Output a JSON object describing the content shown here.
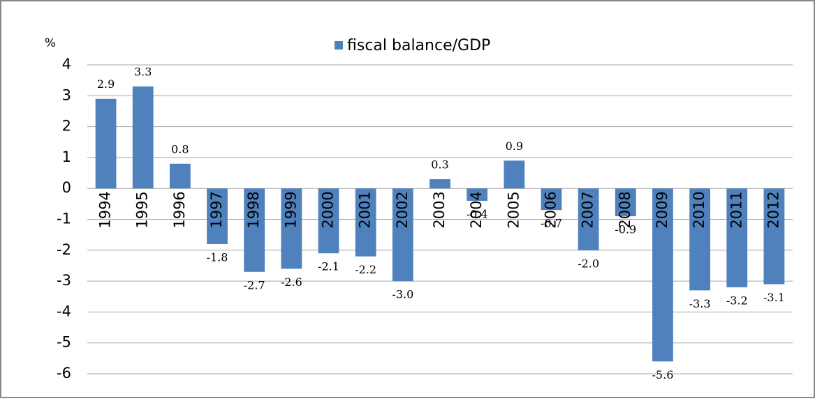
{
  "chart_data": {
    "type": "bar",
    "y_label": "%",
    "categories": [
      "1994",
      "1995",
      "1996",
      "1997",
      "1998",
      "1999",
      "2000",
      "2001",
      "2002",
      "2003",
      "2004",
      "2005",
      "2006",
      "2007",
      "2008",
      "2009",
      "2010",
      "2011",
      "2012"
    ],
    "series": [
      {
        "name": "fiscal balance/GDP",
        "color": "#4f81bd",
        "values": [
          2.9,
          3.3,
          0.8,
          -1.8,
          -2.7,
          -2.6,
          -2.1,
          -2.2,
          -3.0,
          0.3,
          -0.4,
          0.9,
          -0.7,
          -2.0,
          -0.9,
          -5.6,
          -3.3,
          -3.2,
          -3.1
        ],
        "value_labels": [
          "2.9",
          "3.3",
          "0.8",
          "-1.8",
          "-2.7",
          "-2.6",
          "-2.1",
          "-2.2",
          "-3.0",
          "0.3",
          "-0.4",
          "0.9",
          "-0.7",
          "-2.0",
          "-0.9",
          "-5.6",
          "-3.3",
          "-3.2",
          "-3.1"
        ]
      }
    ],
    "ylim": [
      -6,
      4
    ],
    "yticks": [
      -6,
      -5,
      -4,
      -3,
      -2,
      -1,
      0,
      1,
      2,
      3,
      4
    ],
    "grid": true,
    "legend": "top"
  }
}
